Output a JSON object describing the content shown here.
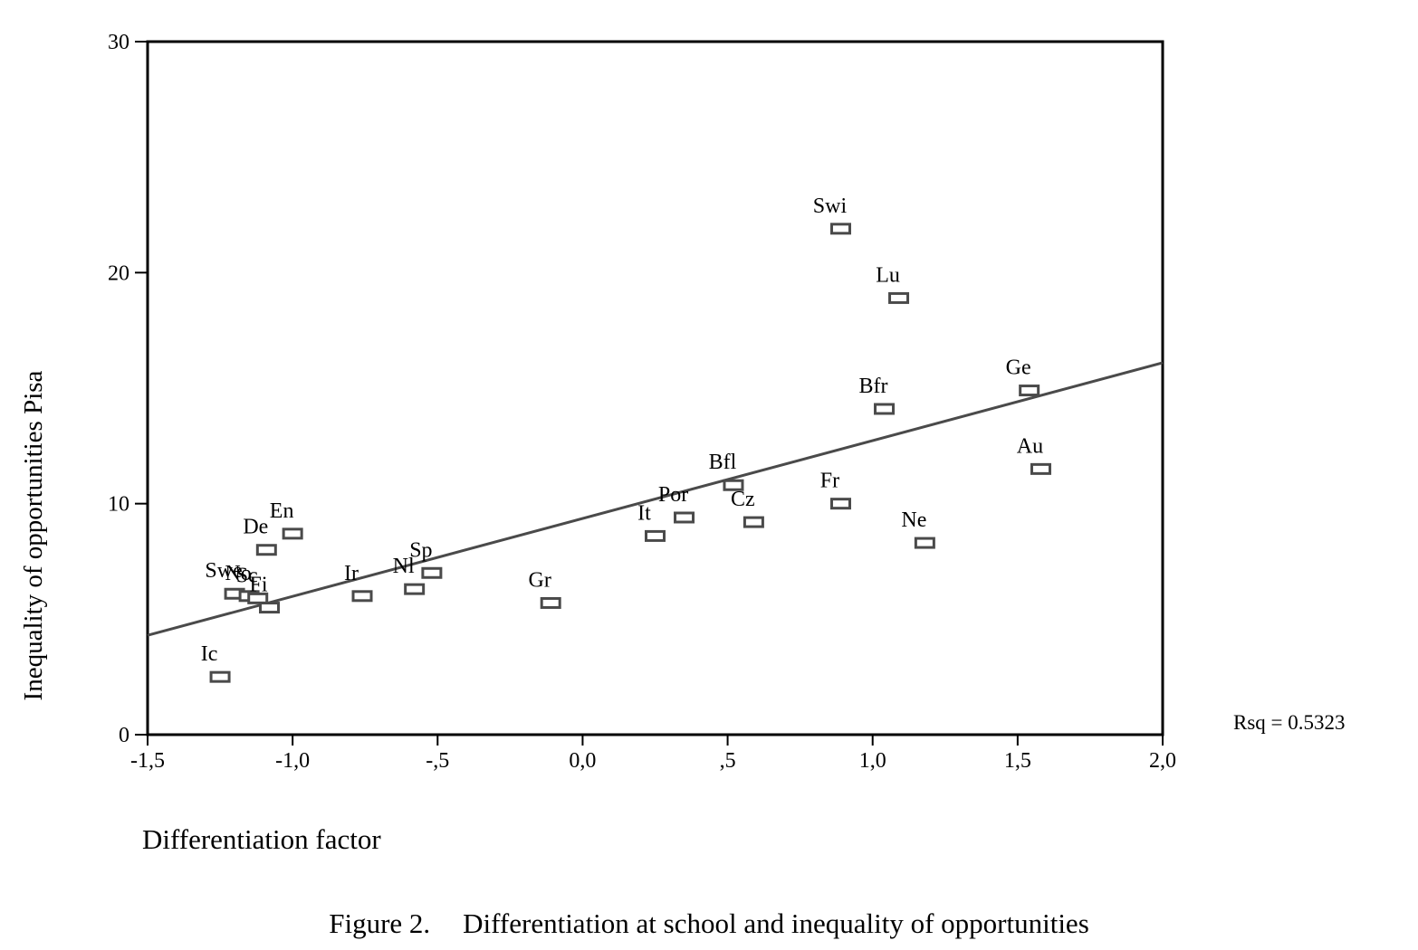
{
  "chart_data": {
    "type": "scatter",
    "xlabel": "Differentiation factor",
    "ylabel": "Inequality of opportunities Pisa",
    "xlim": [
      -1.5,
      2.0
    ],
    "ylim": [
      0,
      30
    ],
    "x_ticks": [
      {
        "value": -1.5,
        "label": "-1,5"
      },
      {
        "value": -1.0,
        "label": "-1,0"
      },
      {
        "value": -0.5,
        "label": "-,5"
      },
      {
        "value": 0.0,
        "label": "0,0"
      },
      {
        "value": 0.5,
        "label": ",5"
      },
      {
        "value": 1.0,
        "label": "1,0"
      },
      {
        "value": 1.5,
        "label": "1,5"
      },
      {
        "value": 2.0,
        "label": "2,0"
      }
    ],
    "y_ticks": [
      {
        "value": 0,
        "label": "0"
      },
      {
        "value": 10,
        "label": "10"
      },
      {
        "value": 20,
        "label": "20"
      },
      {
        "value": 30,
        "label": "30"
      }
    ],
    "points": [
      {
        "label": "Swi",
        "x": 0.89,
        "y": 21.9
      },
      {
        "label": "Lu",
        "x": 1.09,
        "y": 18.9
      },
      {
        "label": "Ge",
        "x": 1.54,
        "y": 14.9
      },
      {
        "label": "Bfr",
        "x": 1.04,
        "y": 14.1
      },
      {
        "label": "Au",
        "x": 1.58,
        "y": 11.5
      },
      {
        "label": "Bfl",
        "x": 0.52,
        "y": 10.8
      },
      {
        "label": "Fr",
        "x": 0.89,
        "y": 10.0
      },
      {
        "label": "Por",
        "x": 0.35,
        "y": 9.4
      },
      {
        "label": "Cz",
        "x": 0.59,
        "y": 9.2
      },
      {
        "label": "It",
        "x": 0.25,
        "y": 8.6
      },
      {
        "label": "Ne",
        "x": 1.18,
        "y": 8.3
      },
      {
        "label": "En",
        "x": -1.0,
        "y": 8.7
      },
      {
        "label": "De",
        "x": -1.09,
        "y": 8.0
      },
      {
        "label": "Sp",
        "x": -0.52,
        "y": 7.0
      },
      {
        "label": "Nl",
        "x": -0.58,
        "y": 6.3
      },
      {
        "label": "Ir",
        "x": -0.76,
        "y": 6.0
      },
      {
        "label": "Gr",
        "x": -0.11,
        "y": 5.7
      },
      {
        "label": "Swe",
        "x": -1.2,
        "y": 6.1
      },
      {
        "label": "No",
        "x": -1.15,
        "y": 6.0
      },
      {
        "label": "Sc",
        "x": -1.12,
        "y": 5.9
      },
      {
        "label": "Fi",
        "x": -1.08,
        "y": 5.5
      },
      {
        "label": "Ic",
        "x": -1.25,
        "y": 2.5
      }
    ],
    "fit_line": {
      "x0": -1.5,
      "y0": 4.3,
      "x1": 2.0,
      "y1": 16.1
    },
    "rsq_label": "Rsq = 0.5323"
  },
  "caption": {
    "figure": "Figure 2.",
    "text": "Differentiation at school and inequality of opportunities"
  }
}
